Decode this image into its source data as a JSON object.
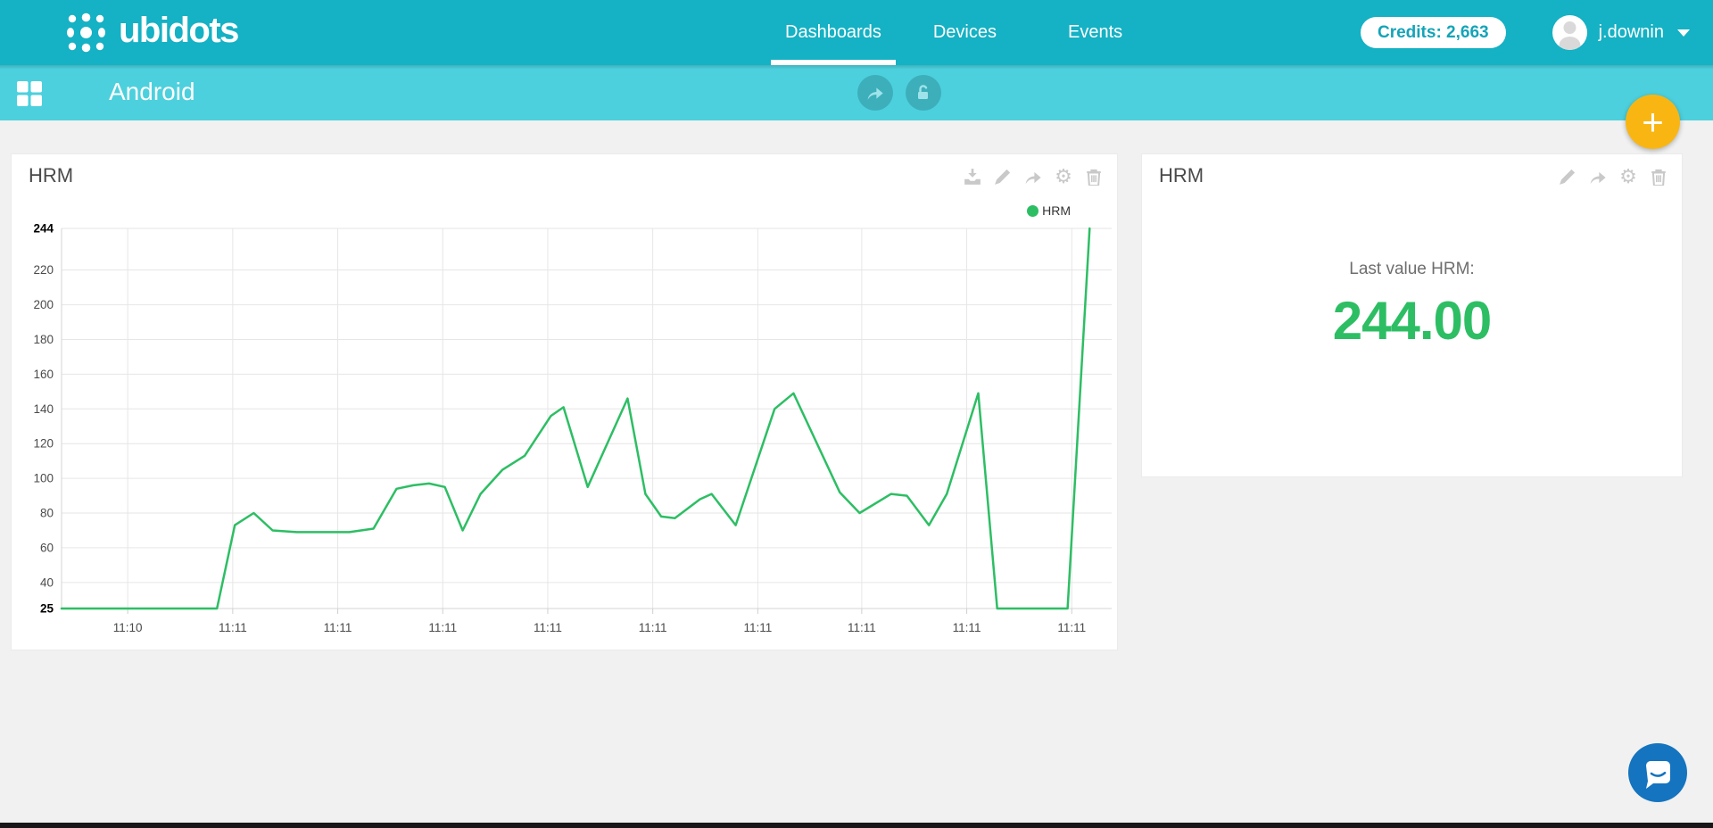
{
  "navbar": {
    "brand": "ubidots",
    "items": [
      {
        "label": "Dashboards",
        "active": true
      },
      {
        "label": "Devices",
        "active": false
      },
      {
        "label": "Events",
        "active": false
      }
    ],
    "credits_label": "Credits: 2,663",
    "username": "j.downin"
  },
  "subnav": {
    "title": "Android"
  },
  "fab": {
    "plus_label": "+"
  },
  "chart_widget": {
    "title": "HRM",
    "toolbar_icons": [
      "download",
      "edit",
      "share",
      "settings",
      "delete"
    ]
  },
  "value_widget": {
    "title": "HRM",
    "label": "Last value HRM:",
    "value": "244.00",
    "toolbar_icons": [
      "edit",
      "share",
      "settings",
      "delete"
    ]
  },
  "colors": {
    "navbar_teal": "#15b1c4",
    "subnav_teal": "#4dd0dd",
    "series_green": "#2dbe64",
    "fab_amber": "#f9b613",
    "chat_blue": "#1474bf",
    "icon_gray": "#c9c9c9"
  },
  "chart_data": {
    "type": "line",
    "series_name": "HRM",
    "color": "#2dbe64",
    "ylim": [
      25,
      244
    ],
    "grid": true,
    "legend_position": "top-right",
    "y_ticks": [
      244,
      220,
      200,
      180,
      160,
      140,
      120,
      100,
      80,
      60,
      40,
      25
    ],
    "x_ticks": [
      {
        "label": "11:10",
        "pct": 6.3
      },
      {
        "label": "11:11",
        "pct": 16.3
      },
      {
        "label": "11:11",
        "pct": 26.3
      },
      {
        "label": "11:11",
        "pct": 36.3
      },
      {
        "label": "11:11",
        "pct": 46.3
      },
      {
        "label": "11:11",
        "pct": 56.3
      },
      {
        "label": "11:11",
        "pct": 66.3
      },
      {
        "label": "11:11",
        "pct": 76.2
      },
      {
        "label": "11:11",
        "pct": 86.2
      },
      {
        "label": "11:11",
        "pct": 96.2
      }
    ],
    "points": [
      [
        0,
        25
      ],
      [
        14.8,
        25
      ],
      [
        16.5,
        73
      ],
      [
        18.3,
        80
      ],
      [
        20.1,
        70
      ],
      [
        22.4,
        69
      ],
      [
        24.8,
        69
      ],
      [
        27.4,
        69
      ],
      [
        29.7,
        71
      ],
      [
        31.9,
        94
      ],
      [
        33.5,
        96
      ],
      [
        35,
        97
      ],
      [
        36.5,
        95
      ],
      [
        38.2,
        70
      ],
      [
        39.9,
        91
      ],
      [
        42,
        105
      ],
      [
        44.1,
        113
      ],
      [
        46.6,
        136
      ],
      [
        47.8,
        141
      ],
      [
        50.1,
        95
      ],
      [
        53.9,
        146
      ],
      [
        55.6,
        91
      ],
      [
        57.1,
        78
      ],
      [
        58.4,
        77
      ],
      [
        60.8,
        88
      ],
      [
        61.9,
        91
      ],
      [
        64.2,
        73
      ],
      [
        67.9,
        140
      ],
      [
        69.7,
        149
      ],
      [
        74.1,
        92
      ],
      [
        76,
        80
      ],
      [
        79,
        91
      ],
      [
        80.5,
        90
      ],
      [
        82.6,
        73
      ],
      [
        84.3,
        91
      ],
      [
        87.3,
        149
      ],
      [
        89.1,
        25
      ],
      [
        95.8,
        25
      ],
      [
        97.9,
        244
      ]
    ]
  }
}
